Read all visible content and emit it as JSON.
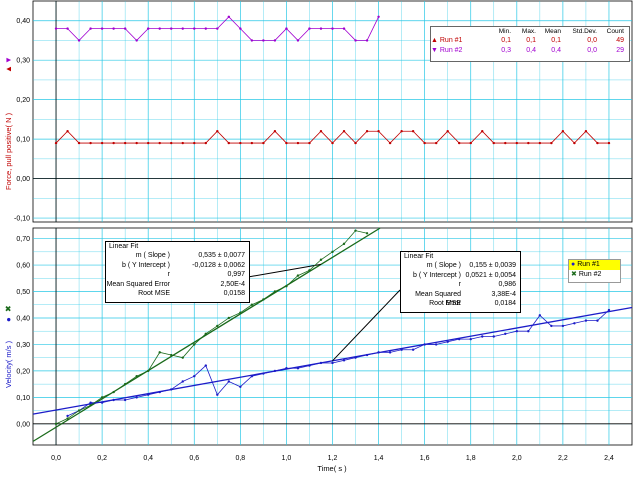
{
  "colors": {
    "grid": "#28c8e6",
    "run1": "#c00000",
    "run2": "#a000d0",
    "vel1": "#1a6a1a",
    "vel2": "#1c1cc8"
  },
  "force_chart": {
    "ylabel": "Force, pull positive( N )",
    "yticks": [
      "0,40",
      "0,30",
      "0,20",
      "0,10",
      "0,00",
      "-0,10"
    ],
    "stats_header": [
      "Min.",
      "Max.",
      "Mean",
      "Std.Dev.",
      "Count"
    ],
    "stats": [
      {
        "name": "Run #1",
        "min": "0,1",
        "max": "0,1",
        "mean": "0,1",
        "sd": "0,0",
        "count": "49"
      },
      {
        "name": "Run #2",
        "min": "0,3",
        "max": "0,4",
        "mean": "0,4",
        "sd": "0,0",
        "count": "29"
      }
    ]
  },
  "velocity_chart": {
    "ylabel": "Velocity( m/s )",
    "yticks": [
      "0,70",
      "0,60",
      "0,50",
      "0,40",
      "0,30",
      "0,20",
      "0,10",
      "0,00"
    ],
    "xlabel": "Time( s )",
    "xticks": [
      "0,0",
      "0,2",
      "0,4",
      "0,6",
      "0,8",
      "1,0",
      "1,2",
      "1,4",
      "1,6",
      "1,8",
      "2,0",
      "2,2",
      "2,4"
    ],
    "legend": [
      "Run #1",
      "Run #2"
    ],
    "fit1": {
      "title": "Linear Fit",
      "rows": [
        {
          "k": "m ( Slope )",
          "v": "0,535 ± 0,0077"
        },
        {
          "k": "b ( Y Intercept )",
          "v": "-0,0128 ± 0,0062"
        },
        {
          "k": "r",
          "v": "0,997"
        },
        {
          "k": "Mean Squared Error",
          "v": "2,50E-4"
        },
        {
          "k": "Root MSE",
          "v": "0,0158"
        }
      ]
    },
    "fit2": {
      "title": "Linear Fit",
      "rows": [
        {
          "k": "m ( Slope )",
          "v": "0,155 ± 0,0039"
        },
        {
          "k": "b ( Y Intercept )",
          "v": "0,0521 ± 0,0054"
        },
        {
          "k": "r",
          "v": "0,986"
        },
        {
          "k": "Mean Squared Error",
          "v": "3,38E-4"
        },
        {
          "k": "Root MSE",
          "v": "0,0184"
        }
      ]
    }
  },
  "chart_data": [
    {
      "type": "line",
      "ylabel": "Force, pull positive( N )",
      "ylim": [
        -0.11,
        0.45
      ],
      "x_tick_step": 0.2,
      "series": [
        {
          "name": "Run #1",
          "x": [
            0.0,
            0.05,
            0.1,
            0.15,
            0.2,
            0.25,
            0.3,
            0.35,
            0.4,
            0.45,
            0.5,
            0.55,
            0.6,
            0.65,
            0.7,
            0.75,
            0.8,
            0.85,
            0.9,
            0.95,
            1.0,
            1.05,
            1.1,
            1.15,
            1.2,
            1.25,
            1.3,
            1.35,
            1.4,
            1.45,
            1.5,
            1.55,
            1.6,
            1.65,
            1.7,
            1.75,
            1.8,
            1.85,
            1.9,
            1.95,
            2.0,
            2.05,
            2.1,
            2.15,
            2.2,
            2.25,
            2.3,
            2.35,
            2.4
          ],
          "values": [
            0.09,
            0.12,
            0.09,
            0.09,
            0.09,
            0.09,
            0.09,
            0.09,
            0.09,
            0.09,
            0.09,
            0.09,
            0.09,
            0.09,
            0.12,
            0.09,
            0.09,
            0.09,
            0.09,
            0.12,
            0.09,
            0.09,
            0.09,
            0.12,
            0.09,
            0.12,
            0.09,
            0.12,
            0.12,
            0.09,
            0.12,
            0.12,
            0.09,
            0.09,
            0.12,
            0.09,
            0.09,
            0.12,
            0.09,
            0.09,
            0.09,
            0.09,
            0.09,
            0.09,
            0.12,
            0.09,
            0.12,
            0.09,
            0.09
          ]
        },
        {
          "name": "Run #2",
          "x": [
            0.0,
            0.05,
            0.1,
            0.15,
            0.2,
            0.25,
            0.3,
            0.35,
            0.4,
            0.45,
            0.5,
            0.55,
            0.6,
            0.65,
            0.7,
            0.75,
            0.8,
            0.85,
            0.9,
            0.95,
            1.0,
            1.05,
            1.1,
            1.15,
            1.2,
            1.25,
            1.3,
            1.35,
            1.4
          ],
          "values": [
            0.38,
            0.38,
            0.35,
            0.38,
            0.38,
            0.38,
            0.38,
            0.35,
            0.38,
            0.38,
            0.38,
            0.38,
            0.38,
            0.38,
            0.38,
            0.41,
            0.38,
            0.35,
            0.35,
            0.35,
            0.38,
            0.35,
            0.38,
            0.38,
            0.38,
            0.38,
            0.35,
            0.35,
            0.41
          ]
        }
      ]
    },
    {
      "type": "scatter",
      "xlabel": "Time( s )",
      "ylabel": "Velocity( m/s )",
      "xlim": [
        -0.1,
        2.5
      ],
      "ylim": [
        -0.08,
        0.74
      ],
      "series": [
        {
          "name": "Run #1",
          "x": [
            0.05,
            0.1,
            0.15,
            0.2,
            0.25,
            0.3,
            0.35,
            0.4,
            0.45,
            0.5,
            0.55,
            0.6,
            0.65,
            0.7,
            0.75,
            0.8,
            0.85,
            0.9,
            0.95,
            1.0,
            1.05,
            1.1,
            1.15,
            1.2,
            1.25,
            1.3,
            1.35,
            1.4,
            1.45,
            1.5,
            1.55,
            1.6,
            1.65,
            1.7,
            1.75,
            1.8,
            1.85,
            1.9,
            1.95,
            2.0,
            2.05,
            2.1,
            2.15,
            2.2,
            2.25,
            2.3,
            2.35,
            2.4
          ],
          "values": [
            0.03,
            0.05,
            0.08,
            0.08,
            0.09,
            0.09,
            0.1,
            0.11,
            0.12,
            0.13,
            0.16,
            0.18,
            0.22,
            0.11,
            0.16,
            0.14,
            0.18,
            0.19,
            0.2,
            0.21,
            0.21,
            0.22,
            0.23,
            0.23,
            0.24,
            0.25,
            0.26,
            0.27,
            0.27,
            0.28,
            0.28,
            0.3,
            0.3,
            0.31,
            0.32,
            0.32,
            0.33,
            0.33,
            0.34,
            0.35,
            0.35,
            0.41,
            0.37,
            0.37,
            0.38,
            0.39,
            0.39,
            0.43
          ]
        },
        {
          "name": "Run #2",
          "x": [
            0.0,
            0.05,
            0.1,
            0.15,
            0.2,
            0.25,
            0.3,
            0.35,
            0.4,
            0.45,
            0.5,
            0.55,
            0.6,
            0.65,
            0.7,
            0.75,
            0.8,
            0.85,
            0.9,
            0.95,
            1.0,
            1.05,
            1.1,
            1.15,
            1.2,
            1.25,
            1.3,
            1.35
          ],
          "values": [
            0.0,
            0.02,
            0.05,
            0.07,
            0.1,
            0.12,
            0.15,
            0.18,
            0.2,
            0.27,
            0.26,
            0.25,
            0.3,
            0.34,
            0.37,
            0.4,
            0.42,
            0.45,
            0.47,
            0.5,
            0.52,
            0.56,
            0.58,
            0.62,
            0.65,
            0.68,
            0.73,
            0.72
          ]
        }
      ],
      "fits": [
        {
          "series": "Run #2",
          "slope": 0.535,
          "intercept": -0.0128
        },
        {
          "series": "Run #1",
          "slope": 0.155,
          "intercept": 0.0521
        }
      ]
    }
  ]
}
